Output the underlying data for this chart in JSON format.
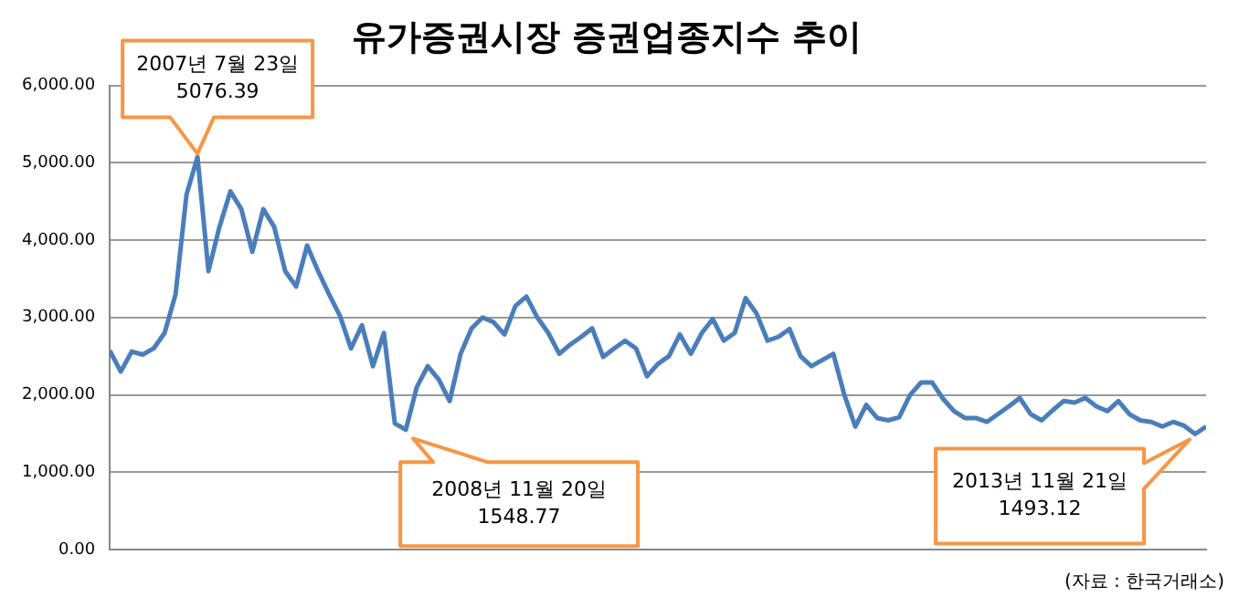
{
  "chart_data": {
    "type": "line",
    "title": "유가증권시장 증권업종지수 추이",
    "categories": [
      null,
      null,
      null,
      null,
      null,
      null,
      null,
      null,
      null,
      null,
      null,
      null,
      null,
      null,
      null,
      null,
      null,
      null,
      null,
      null,
      null,
      null,
      null,
      null,
      null,
      null,
      null,
      null,
      null,
      null,
      null,
      null,
      null,
      null,
      null,
      null,
      null,
      null,
      null,
      null,
      null,
      null,
      null,
      null,
      null,
      null,
      null,
      null,
      null,
      null,
      null,
      null,
      null,
      null,
      null,
      null,
      null,
      null,
      null,
      null,
      null,
      null,
      null,
      null,
      null,
      null,
      null,
      null,
      null,
      null,
      null,
      null,
      null,
      null,
      null,
      null,
      null,
      null,
      null,
      null,
      null,
      null,
      null,
      null,
      null,
      null,
      null,
      null,
      null,
      null,
      null,
      null,
      null,
      null,
      null,
      null,
      null,
      null,
      null,
      null,
      null
    ],
    "series": [
      {
        "color": "#4a7ebb",
        "values": [
          2570,
          2300,
          2560,
          2520,
          2600,
          2800,
          3300,
          4590,
          5076.39,
          3600,
          4170,
          4630,
          4400,
          3850,
          4400,
          4170,
          3600,
          3400,
          3930,
          3600,
          3300,
          3020,
          2600,
          2900,
          2370,
          2800,
          1630,
          1548.77,
          2100,
          2370,
          2200,
          1920,
          2530,
          2860,
          3000,
          2940,
          2780,
          3150,
          3270,
          3000,
          2800,
          2530,
          2650,
          2750,
          2860,
          2490,
          2600,
          2700,
          2600,
          2240,
          2400,
          2500,
          2780,
          2530,
          2800,
          2980,
          2700,
          2800,
          3250,
          3050,
          2700,
          2750,
          2850,
          2500,
          2370,
          2450,
          2530,
          2000,
          1590,
          1870,
          1700,
          1670,
          1710,
          2000,
          2160,
          2160,
          1950,
          1790,
          1700,
          1700,
          1650,
          1750,
          1850,
          1960,
          1750,
          1670,
          1800,
          1920,
          1900,
          1960,
          1850,
          1790,
          1920,
          1750,
          1670,
          1650,
          1590,
          1650,
          1600,
          1493.12,
          1590
        ]
      }
    ],
    "ylim": [
      0,
      6000
    ],
    "yticks": [
      {
        "value": 0,
        "label": "0.00"
      },
      {
        "value": 1000,
        "label": "1,000.00"
      },
      {
        "value": 2000,
        "label": "2,000.00"
      },
      {
        "value": 3000,
        "label": "3,000.00"
      },
      {
        "value": 4000,
        "label": "4,000.00"
      },
      {
        "value": 5000,
        "label": "5,000.00"
      },
      {
        "value": 6000,
        "label": "6,000.00"
      }
    ],
    "tick_labels": "y",
    "grid": "y",
    "legend": false,
    "marker": "none",
    "line_style": "solid",
    "annotations": [
      "2007년 7월 23일\n5076.39",
      "2008년 11월 20일\n1548.77",
      "2013년 11월 21일\n1493.12",
      "(자료 : 한국거래소)"
    ]
  }
}
